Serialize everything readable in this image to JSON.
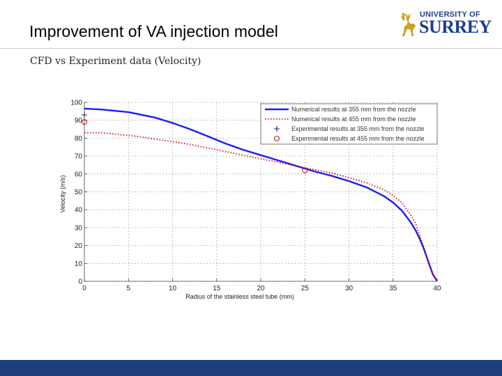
{
  "slide": {
    "title": "Improvement of VA injection model",
    "subtitle": "CFD vs Experiment data (Velocity)"
  },
  "logo": {
    "line1": "UNIVERSITY OF",
    "line2": "SURREY",
    "color": "#1c3f8f",
    "accent": "#c9a227"
  },
  "footer": {
    "color": "#1f3f7a"
  },
  "chart_data": {
    "type": "line",
    "title": "",
    "xlabel": "Radius of the stainless steel tube (mm)",
    "ylabel": "Velocity (m/s)",
    "xlim": [
      0,
      40
    ],
    "ylim": [
      0,
      100
    ],
    "xticks": [
      0,
      5,
      10,
      15,
      20,
      25,
      30,
      35,
      40
    ],
    "yticks": [
      0,
      10,
      20,
      30,
      40,
      50,
      60,
      70,
      80,
      90,
      100
    ],
    "grid": true,
    "legend_position": "top-right",
    "series": [
      {
        "name": "Numerical results at 355 mm from the nozzle",
        "style": "solid",
        "color": "#1a1aff",
        "x": [
          0,
          2,
          5,
          8,
          10,
          12,
          14,
          16,
          18,
          20,
          22,
          24,
          26,
          28,
          30,
          32,
          34,
          35,
          36,
          37,
          37.5,
          38,
          38.5,
          39,
          39.5,
          40
        ],
        "y": [
          96.5,
          96,
          94.5,
          91.5,
          88.5,
          85,
          81,
          77,
          73.5,
          70.5,
          67.5,
          64.5,
          61.5,
          59,
          56,
          52.5,
          47.5,
          44,
          39.5,
          33,
          29,
          24,
          18,
          11,
          4,
          0
        ]
      },
      {
        "name": "Numerical results at 455 mm from the nozzle",
        "style": "dotted",
        "color": "#d01010",
        "x": [
          0,
          2,
          4,
          6,
          8,
          10,
          12,
          14,
          16,
          18,
          20,
          22,
          24,
          26,
          28,
          30,
          32,
          34,
          35,
          36,
          37,
          37.5,
          38,
          38.5,
          39,
          39.5,
          40
        ],
        "y": [
          83,
          83,
          82,
          81,
          79.5,
          78,
          76.5,
          74.5,
          72.5,
          70.5,
          68.5,
          66.5,
          64.5,
          62.5,
          60.5,
          58,
          55,
          51,
          48,
          44,
          37,
          33,
          26,
          19,
          11,
          4,
          0
        ]
      },
      {
        "name": "Experimental results at 355 mm from the nozzle",
        "style": "plus",
        "color": "#1a1a8a",
        "x": [
          0
        ],
        "y": [
          93
        ]
      },
      {
        "name": "Experimental results at 455 mm from the nozzle",
        "style": "circle",
        "color": "#b02020",
        "x": [
          0,
          25
        ],
        "y": [
          89,
          62
        ]
      }
    ]
  }
}
